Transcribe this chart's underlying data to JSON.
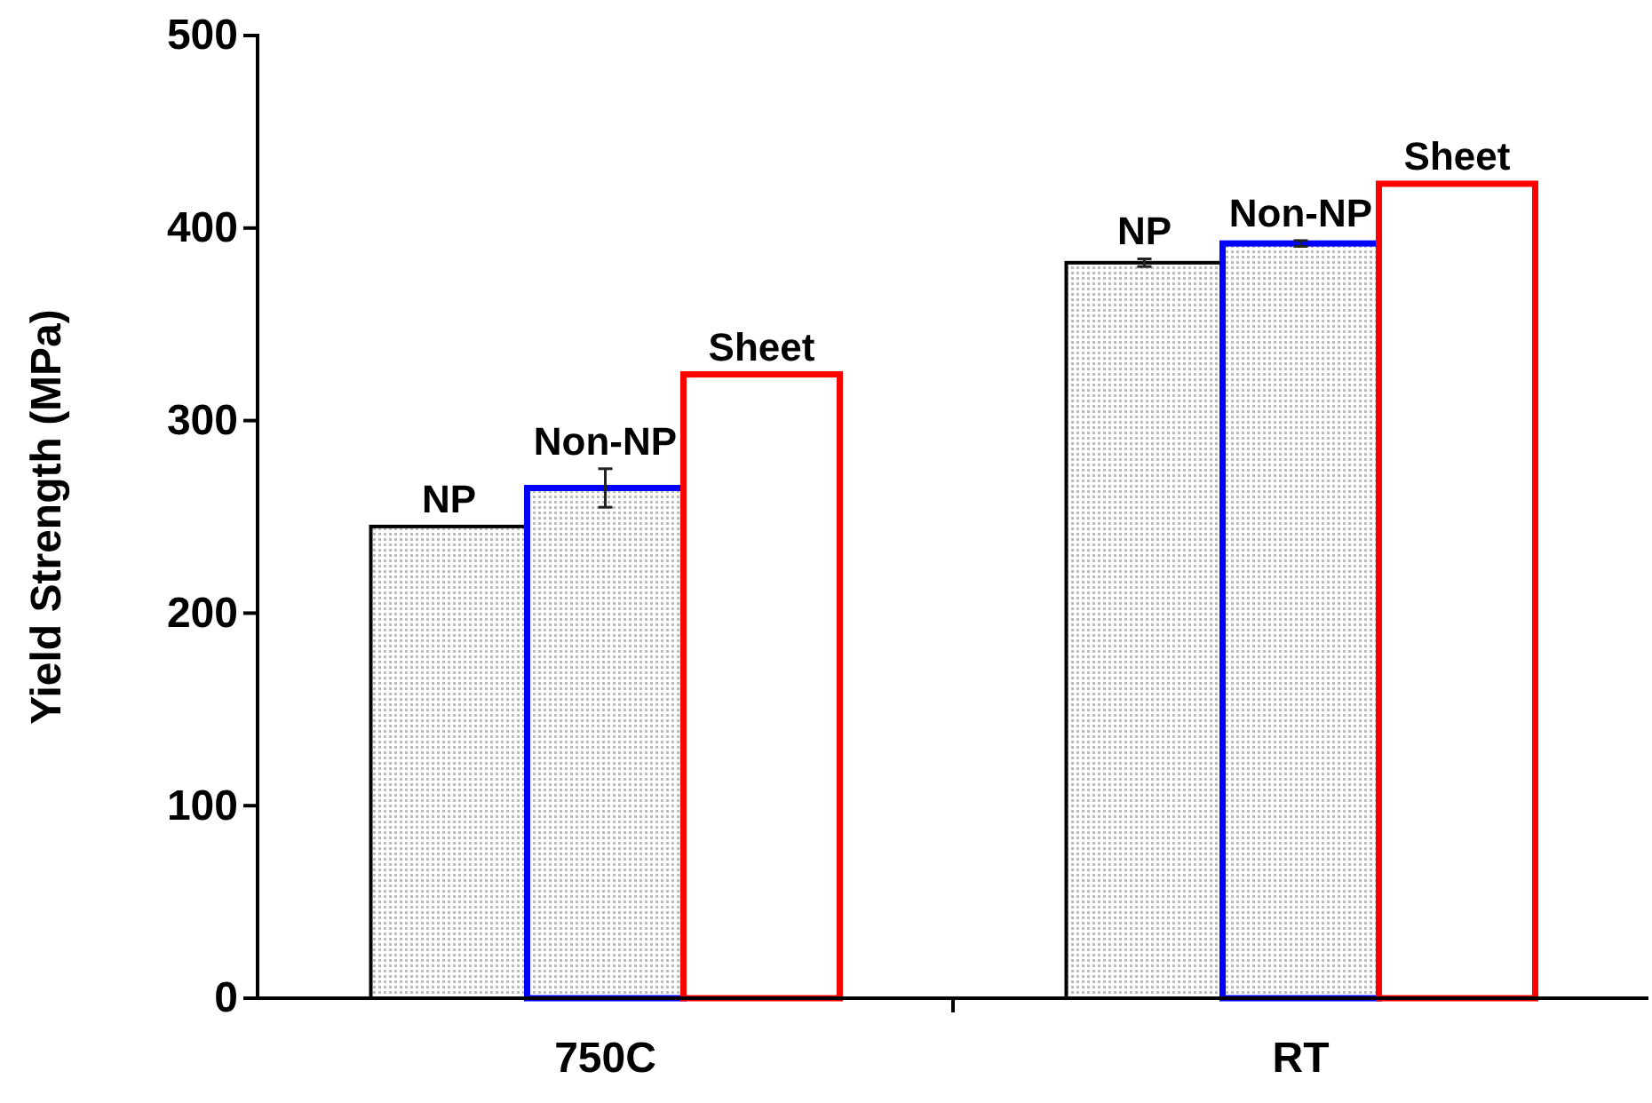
{
  "chart_data": {
    "type": "bar",
    "ylabel": "Yield Strength (MPa)",
    "categories": [
      "750C",
      "RT"
    ],
    "ylim": [
      0,
      500
    ],
    "yticks": [
      0,
      100,
      200,
      300,
      400,
      500
    ],
    "grid": false,
    "legend": false,
    "series": [
      {
        "name": "NP",
        "color": "#000000",
        "values": [
          245,
          382
        ],
        "errors": [
          null,
          2
        ]
      },
      {
        "name": "Non-NP",
        "color": "#0000ff",
        "values": [
          265,
          392
        ],
        "errors": [
          10,
          1.5
        ]
      },
      {
        "name": "Sheet",
        "color": "#ff0000",
        "values": [
          324,
          423
        ]
      }
    ]
  }
}
